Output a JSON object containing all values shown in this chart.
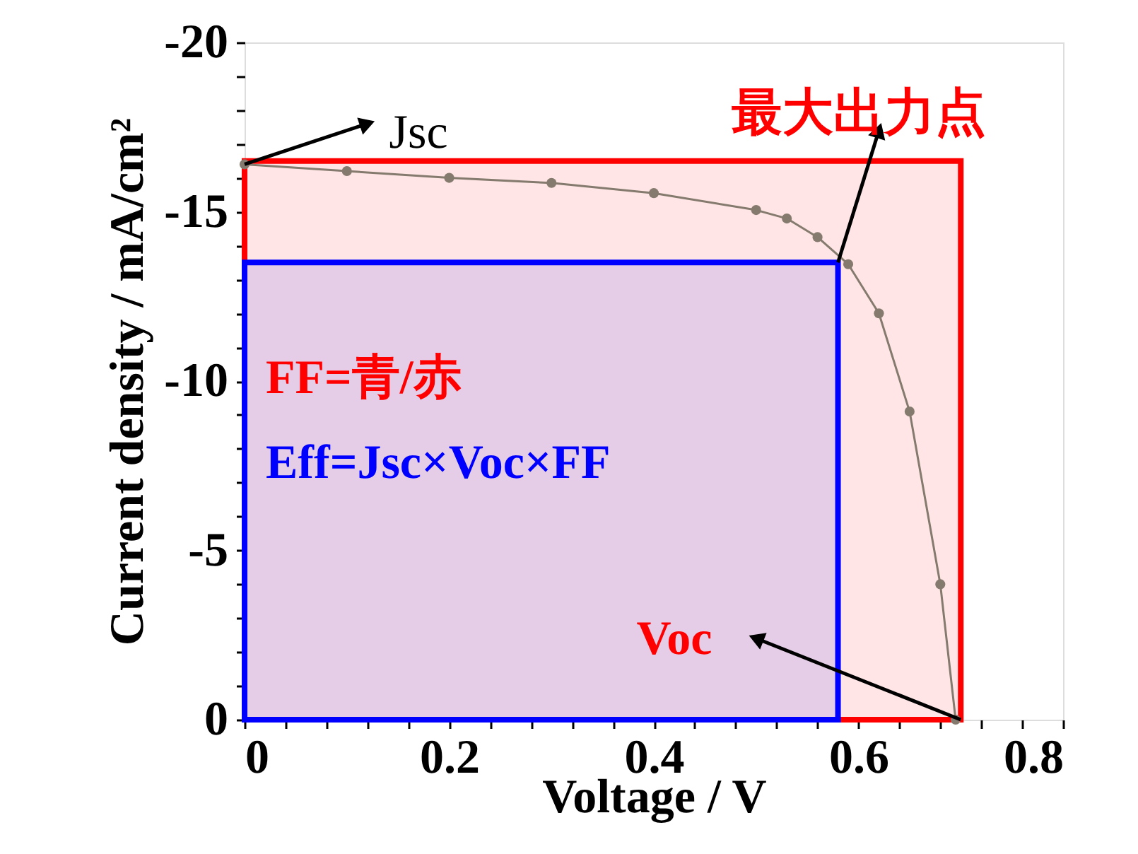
{
  "chart_data": {
    "type": "line",
    "xlabel": "Voltage / V",
    "ylabel": "Current density / mA/cm²",
    "xlim": [
      0,
      0.8
    ],
    "ylim": [
      0,
      -20
    ],
    "xticks": [
      0,
      {
        "value": 0.04,
        "label": null
      },
      {
        "value": 0.08,
        "label": null
      },
      {
        "value": 0.12,
        "label": null
      },
      {
        "value": 0.16,
        "label": null
      },
      0.2,
      {
        "value": 0.24,
        "label": null
      },
      {
        "value": 0.28,
        "label": null
      },
      {
        "value": 0.32,
        "label": null
      },
      {
        "value": 0.36,
        "label": null
      },
      0.4,
      {
        "value": 0.44,
        "label": null
      },
      {
        "value": 0.48,
        "label": null
      },
      {
        "value": 0.52,
        "label": null
      },
      {
        "value": 0.56,
        "label": null
      },
      0.6,
      {
        "value": 0.64,
        "label": null
      },
      {
        "value": 0.68,
        "label": null
      },
      {
        "value": 0.72,
        "label": null
      },
      {
        "value": 0.76,
        "label": null
      },
      0.8
    ],
    "yticks": [
      0,
      {
        "value": -1,
        "label": null
      },
      {
        "value": -2,
        "label": null
      },
      {
        "value": -3,
        "label": null
      },
      {
        "value": -4,
        "label": null
      },
      -5,
      {
        "value": -6,
        "label": null
      },
      {
        "value": -7,
        "label": null
      },
      {
        "value": -8,
        "label": null
      },
      {
        "value": -9,
        "label": null
      },
      -10,
      {
        "value": -11,
        "label": null
      },
      {
        "value": -12,
        "label": null
      },
      {
        "value": -13,
        "label": null
      },
      {
        "value": -14,
        "label": null
      },
      -15,
      {
        "value": -16,
        "label": null
      },
      {
        "value": -17,
        "label": null
      },
      {
        "value": -18,
        "label": null
      },
      {
        "value": -19,
        "label": null
      },
      -20
    ],
    "grid": false,
    "series": [
      {
        "type": "area",
        "color": "#ff0000",
        "x": [
          0,
          0.7
        ],
        "values": [
          -16.5,
          -16.5
        ]
      },
      {
        "type": "area",
        "color": "#0000ff",
        "x": [
          0,
          0.58
        ],
        "values": [
          -13.5,
          -13.5
        ]
      },
      {
        "type": "line",
        "color": "#857a6e",
        "marker": "circle",
        "x": [
          0,
          0.1,
          0.2,
          0.3,
          0.4,
          0.5,
          0.53,
          0.56,
          0.59,
          0.62,
          0.65,
          0.68,
          0.695
        ],
        "values": [
          -16.4,
          -16.2,
          -16.0,
          -15.85,
          -15.55,
          -15.05,
          -14.8,
          -14.25,
          -13.45,
          -12.0,
          -9.1,
          -4.0,
          0
        ]
      }
    ],
    "annotations": [
      {
        "text": "Jsc",
        "x": 0,
        "y": -16.4
      },
      {
        "text": "最大出力点",
        "x": 0.58,
        "y": -13.5
      },
      {
        "text": "Voc",
        "x": 0.7,
        "y": 0
      },
      "FF=青/赤",
      "Eff=Jsc×Voc×FF"
    ]
  }
}
